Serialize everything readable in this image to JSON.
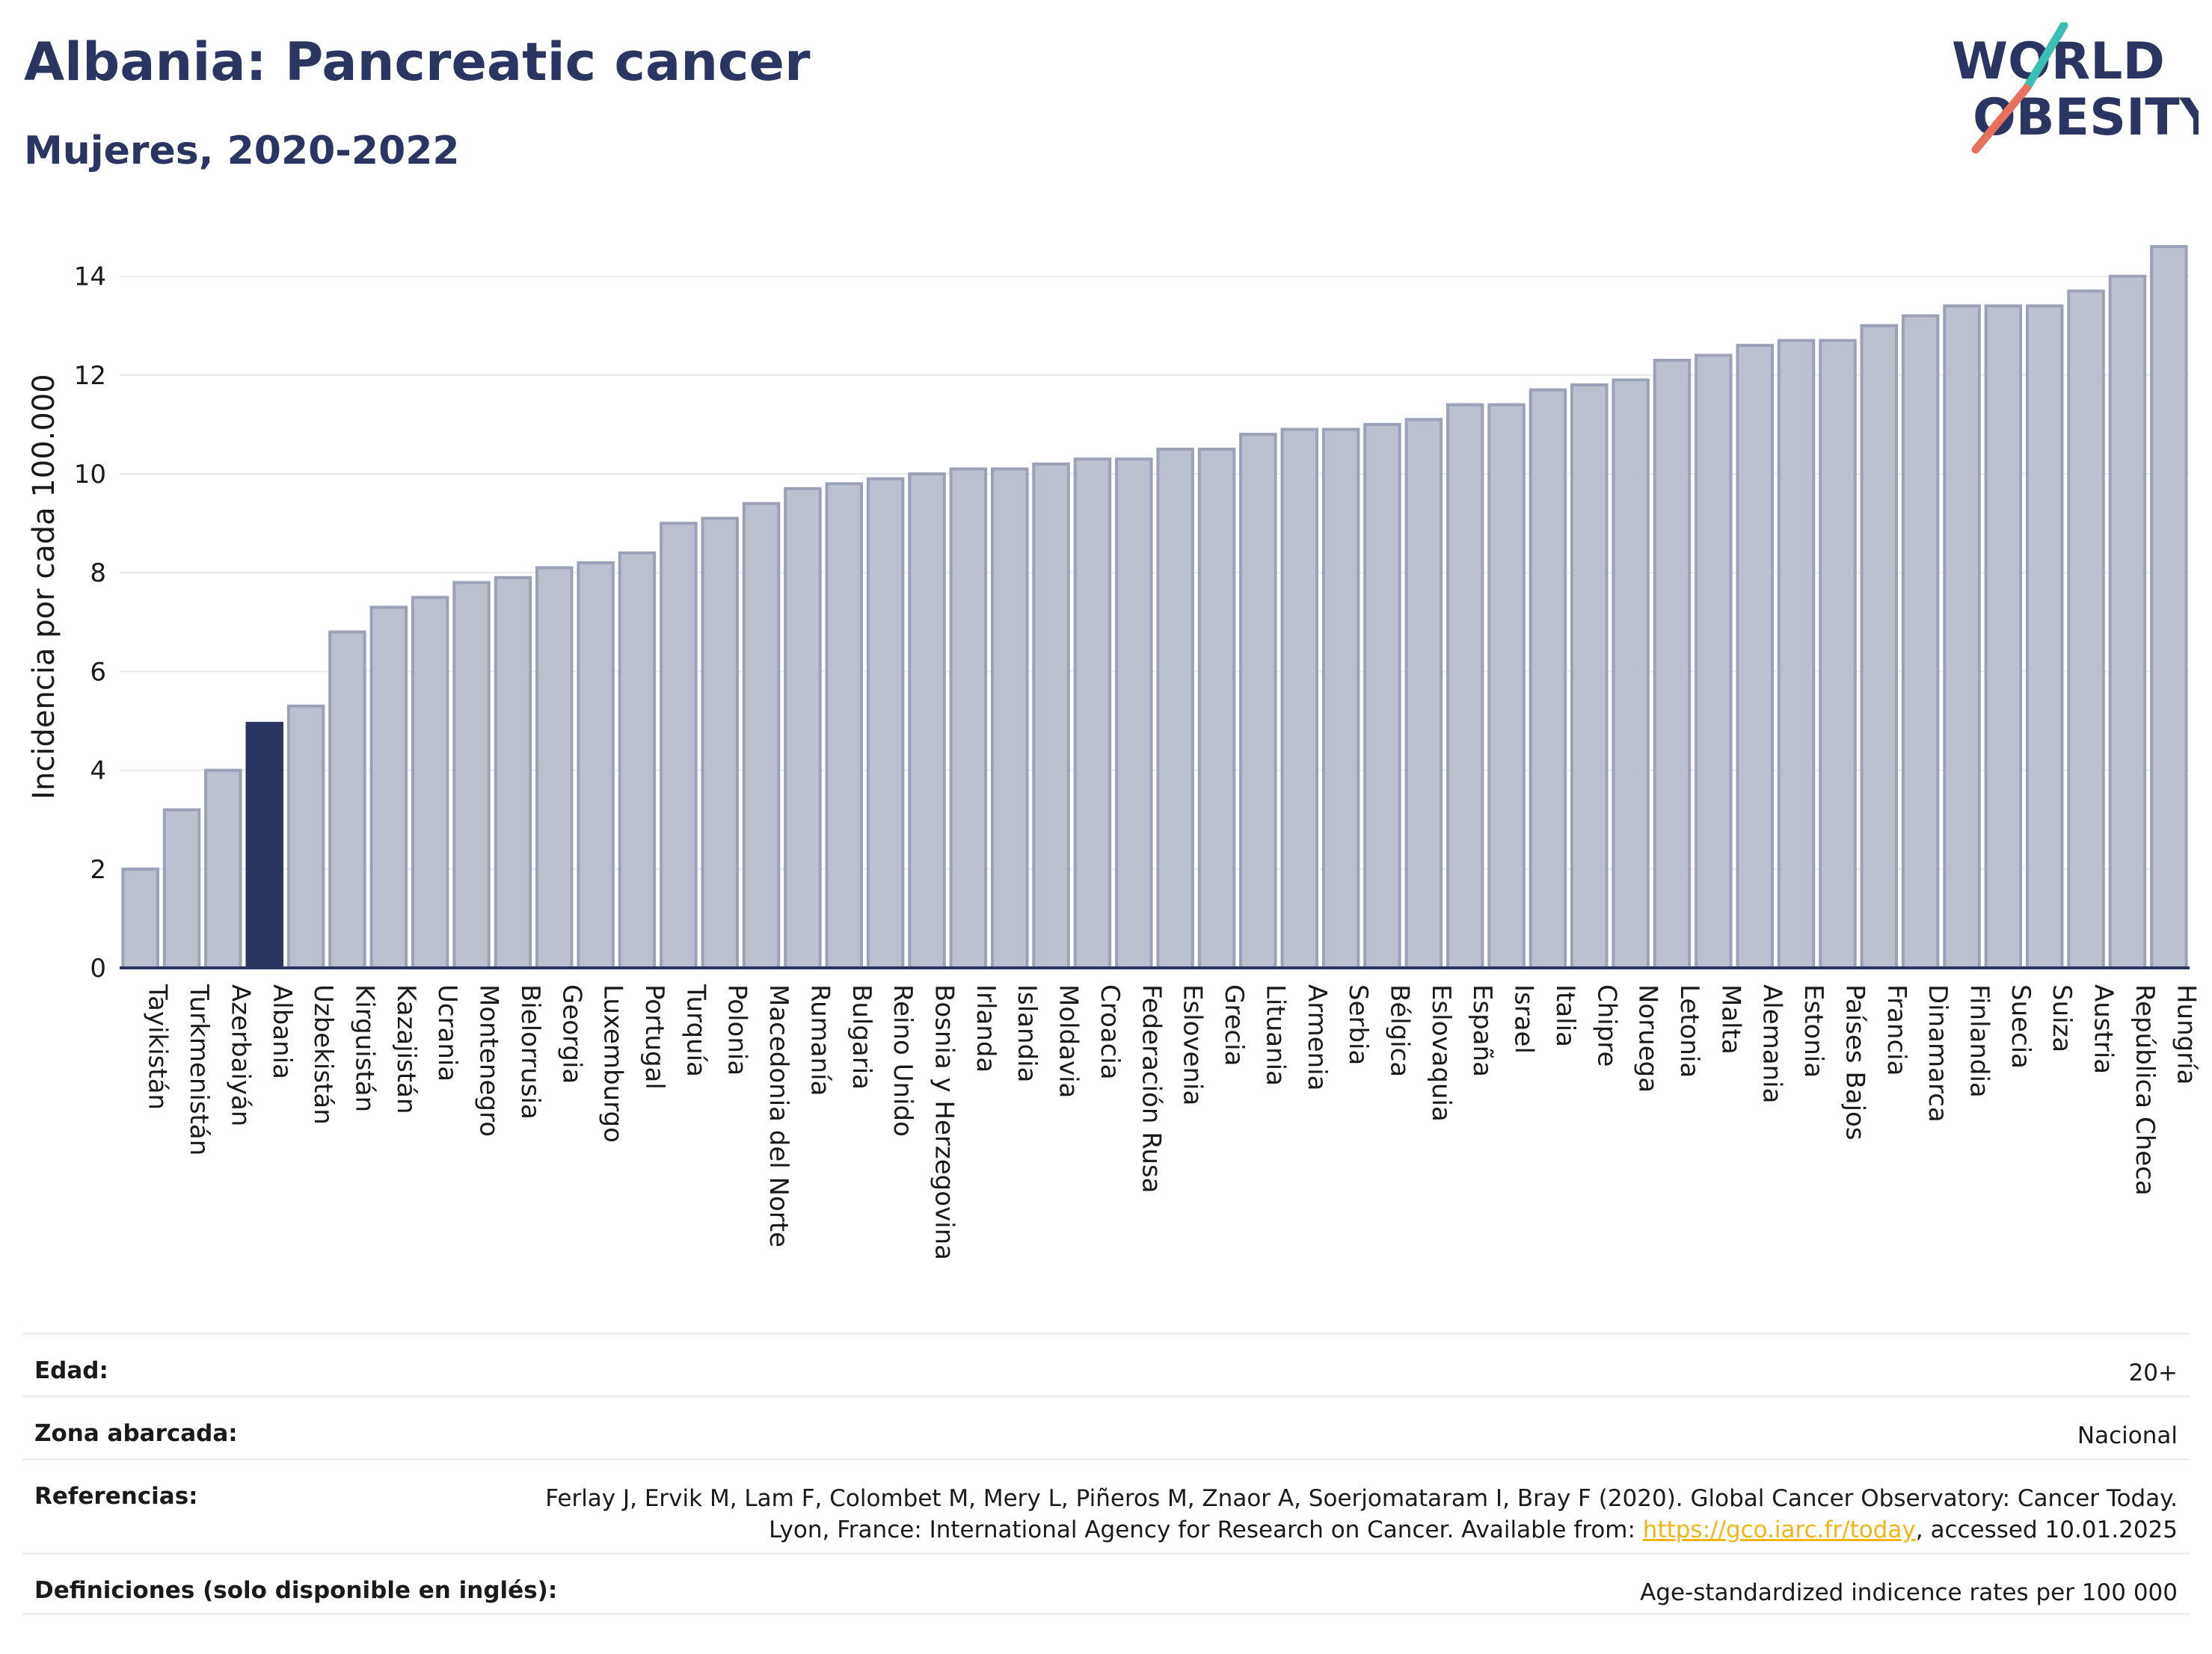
{
  "header": {
    "title": "Albania: Pancreatic cancer",
    "subtitle": "Mujeres, 2020-2022"
  },
  "logo": {
    "line1": "WORLD",
    "line2": "OBESITY"
  },
  "chart_data": {
    "type": "bar",
    "ylabel": "Incidencia por cada 100.000",
    "ylim": [
      0,
      15
    ],
    "yticks": [
      0,
      2,
      4,
      6,
      8,
      10,
      12,
      14
    ],
    "grid": true,
    "highlight": "Albania",
    "categories": [
      "Tayikistán",
      "Turkmenistán",
      "Azerbaiyán",
      "Albania",
      "Uzbekistán",
      "Kirguistán",
      "Kazajistán",
      "Ucrania",
      "Montenegro",
      "Bielorrusia",
      "Georgia",
      "Luxemburgo",
      "Portugal",
      "Turquía",
      "Polonia",
      "Macedonia del Norte",
      "Rumanía",
      "Bulgaria",
      "Reino Unido",
      "Bosnia y Herzegovina",
      "Irlanda",
      "Islandia",
      "Moldavia",
      "Croacia",
      "Federación Rusa",
      "Eslovenia",
      "Grecia",
      "Lituania",
      "Armenia",
      "Serbia",
      "Bélgica",
      "Eslovaquia",
      "España",
      "Israel",
      "Italia",
      "Chipre",
      "Noruega",
      "Letonia",
      "Malta",
      "Alemania",
      "Estonia",
      "Países Bajos",
      "Francia",
      "Dinamarca",
      "Finlandia",
      "Suecia",
      "Suiza",
      "Austria",
      "República Checa",
      "Hungría"
    ],
    "values": [
      2.0,
      3.2,
      4.0,
      4.95,
      5.3,
      6.8,
      7.3,
      7.5,
      7.8,
      7.9,
      8.1,
      8.2,
      8.4,
      9.0,
      9.1,
      9.4,
      9.7,
      9.8,
      9.9,
      10.0,
      10.1,
      10.1,
      10.2,
      10.3,
      10.3,
      10.5,
      10.5,
      10.8,
      10.9,
      10.9,
      11.0,
      11.1,
      11.4,
      11.4,
      11.7,
      11.8,
      11.9,
      12.3,
      12.4,
      12.6,
      12.7,
      12.7,
      13.0,
      13.2,
      13.4,
      13.4,
      13.4,
      13.7,
      14.0,
      14.6
    ],
    "colors": {
      "bar": "#bcc1d0",
      "bar_edge": "#9ba1b7",
      "highlight": "#2b3561",
      "axis": "#2b3561",
      "grid": "#e8eaef"
    }
  },
  "meta": [
    {
      "label": "Edad:",
      "value": "20+"
    },
    {
      "label": "Zona abarcada:",
      "value": "Nacional"
    },
    {
      "label": "Referencias:",
      "value_before": "Ferlay J, Ervik M, Lam F, Colombet M, Mery L, Piñeros M, Znaor A, Soerjomataram I, Bray F (2020). Global Cancer Observatory: Cancer Today. Lyon, France: International Agency for Research on Cancer. Available from: ",
      "link": "https://gco.iarc.fr/today",
      "value_after": ", accessed 10.01.2025"
    },
    {
      "label": "Definiciones (solo disponible en inglés):",
      "value": "Age-standardized indicence rates per 100 000"
    }
  ]
}
